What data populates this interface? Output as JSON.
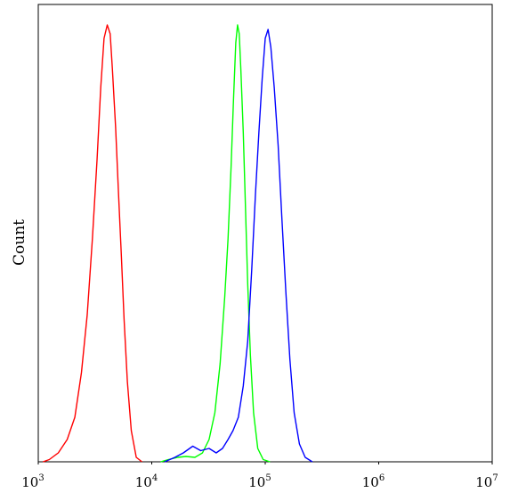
{
  "chart_data": {
    "type": "line",
    "title": "",
    "xlabel": "",
    "ylabel": "Count",
    "x_scale": "log",
    "xlim": [
      1000,
      10000000
    ],
    "ylim": [
      0,
      1
    ],
    "grid": false,
    "legend": "none",
    "x_ticks": [
      {
        "value": 1000,
        "base": "10",
        "exp": "3"
      },
      {
        "value": 10000,
        "base": "10",
        "exp": "4"
      },
      {
        "value": 100000,
        "base": "10",
        "exp": "5"
      },
      {
        "value": 1000000,
        "base": "10",
        "exp": "6"
      },
      {
        "value": 10000000,
        "base": "10",
        "exp": "7"
      }
    ],
    "series": [
      {
        "color": "#ff0000",
        "points": [
          [
            1100,
            0
          ],
          [
            1250,
            0.005
          ],
          [
            1500,
            0.02
          ],
          [
            1800,
            0.05
          ],
          [
            2100,
            0.1
          ],
          [
            2400,
            0.2
          ],
          [
            2700,
            0.33
          ],
          [
            3000,
            0.5
          ],
          [
            3300,
            0.68
          ],
          [
            3550,
            0.84
          ],
          [
            3800,
            0.95
          ],
          [
            4050,
            0.98
          ],
          [
            4300,
            0.96
          ],
          [
            4500,
            0.88
          ],
          [
            4800,
            0.75
          ],
          [
            5100,
            0.6
          ],
          [
            5400,
            0.46
          ],
          [
            5700,
            0.32
          ],
          [
            6100,
            0.18
          ],
          [
            6600,
            0.07
          ],
          [
            7300,
            0.01
          ],
          [
            8200,
            0
          ]
        ]
      },
      {
        "color": "#00ff00",
        "points": [
          [
            12000,
            0
          ],
          [
            14000,
            0.005
          ],
          [
            17000,
            0.01
          ],
          [
            20000,
            0.012
          ],
          [
            24000,
            0.01
          ],
          [
            28000,
            0.02
          ],
          [
            32000,
            0.05
          ],
          [
            36000,
            0.11
          ],
          [
            40000,
            0.22
          ],
          [
            44000,
            0.37
          ],
          [
            47000,
            0.5
          ],
          [
            50000,
            0.66
          ],
          [
            52500,
            0.81
          ],
          [
            55000,
            0.94
          ],
          [
            57000,
            0.98
          ],
          [
            59000,
            0.96
          ],
          [
            61000,
            0.88
          ],
          [
            64000,
            0.74
          ],
          [
            67000,
            0.57
          ],
          [
            70000,
            0.4
          ],
          [
            74000,
            0.24
          ],
          [
            79000,
            0.11
          ],
          [
            86000,
            0.03
          ],
          [
            96000,
            0.005
          ],
          [
            110000,
            0
          ]
        ]
      },
      {
        "color": "#0000ff",
        "points": [
          [
            13000,
            0
          ],
          [
            16000,
            0.01
          ],
          [
            19000,
            0.02
          ],
          [
            23000,
            0.035
          ],
          [
            27000,
            0.025
          ],
          [
            32000,
            0.03
          ],
          [
            37000,
            0.02
          ],
          [
            42000,
            0.03
          ],
          [
            47000,
            0.05
          ],
          [
            52000,
            0.07
          ],
          [
            58000,
            0.1
          ],
          [
            64000,
            0.17
          ],
          [
            70000,
            0.27
          ],
          [
            76000,
            0.43
          ],
          [
            82000,
            0.6
          ],
          [
            88000,
            0.74
          ],
          [
            94000,
            0.86
          ],
          [
            100000,
            0.95
          ],
          [
            106000,
            0.97
          ],
          [
            112000,
            0.93
          ],
          [
            120000,
            0.84
          ],
          [
            130000,
            0.71
          ],
          [
            140000,
            0.55
          ],
          [
            152000,
            0.38
          ],
          [
            165000,
            0.23
          ],
          [
            180000,
            0.11
          ],
          [
            200000,
            0.04
          ],
          [
            225000,
            0.01
          ],
          [
            260000,
            0
          ]
        ]
      }
    ]
  }
}
